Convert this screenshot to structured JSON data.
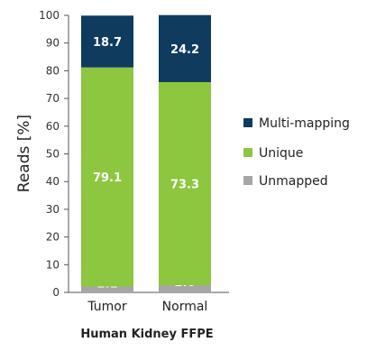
{
  "chart_data": {
    "type": "bar",
    "stacked": true,
    "categories": [
      "Tumor",
      "Normal"
    ],
    "series": [
      {
        "name": "Unmapped",
        "values": [
          2.1,
          2.6
        ],
        "color": "#a6a6a6"
      },
      {
        "name": "Unique",
        "values": [
          79.1,
          73.3
        ],
        "color": "#8dc63f"
      },
      {
        "name": "Multi-mapping",
        "values": [
          18.7,
          24.2
        ],
        "color": "#0f3b5f"
      }
    ],
    "data_labels": [
      [
        "2.1",
        "2.6"
      ],
      [
        "79.1",
        "73.3"
      ],
      [
        "18.7",
        "24.2"
      ]
    ],
    "ylabel": "Reads [%]",
    "xlabel": "Human Kidney FFPE",
    "ylim": [
      0,
      100
    ],
    "yticks": [
      0,
      10,
      20,
      30,
      40,
      50,
      60,
      70,
      80,
      90,
      100
    ],
    "grid": false,
    "legend": {
      "position": "right",
      "entries": [
        "Multi-mapping",
        "Unique",
        "Unmapped"
      ],
      "colors": [
        "#0f3b5f",
        "#8dc63f",
        "#a6a6a6"
      ]
    }
  }
}
